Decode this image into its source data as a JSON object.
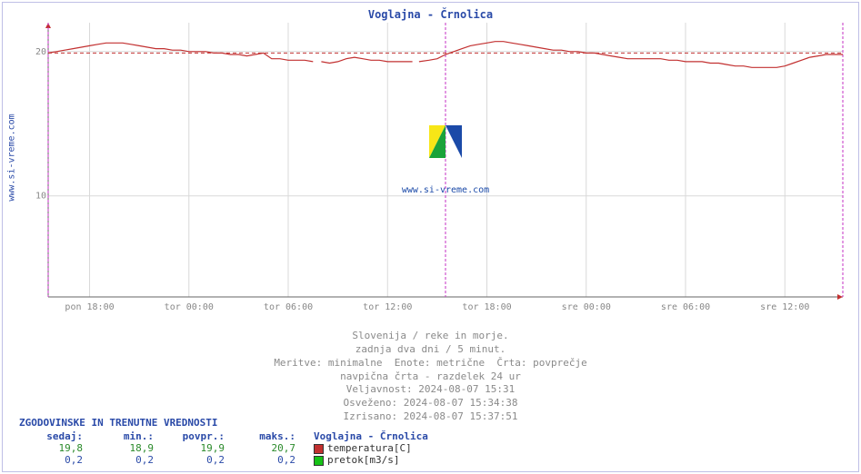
{
  "ylabel": "www.si-vreme.com",
  "title": "Voglajna - Črnolica",
  "watermark": "www.si-vreme.com",
  "meta": {
    "l1": "Slovenija / reke in morje.",
    "l2": "zadnja dva dni / 5 minut.",
    "l3": "Meritve: minimalne  Enote: metrične  Črta: povprečje",
    "l4": "navpična črta - razdelek 24 ur",
    "l5": "Veljavnost: 2024-08-07 15:31",
    "l6": "Osveženo: 2024-08-07 15:34:38",
    "l7": "Izrisano: 2024-08-07 15:37:51"
  },
  "chart": {
    "type": "line",
    "xlim": [
      0,
      48
    ],
    "ylim": [
      3,
      22
    ],
    "yticks": [
      10,
      20
    ],
    "xticks": [
      {
        "pos": 2.5,
        "label": "pon 18:00"
      },
      {
        "pos": 8.5,
        "label": "tor 00:00"
      },
      {
        "pos": 14.5,
        "label": "tor 06:00"
      },
      {
        "pos": 20.5,
        "label": "tor 12:00"
      },
      {
        "pos": 26.5,
        "label": "tor 18:00"
      },
      {
        "pos": 32.5,
        "label": "sre 00:00"
      },
      {
        "pos": 38.5,
        "label": "sre 06:00"
      },
      {
        "pos": 44.5,
        "label": "sre 12:00"
      }
    ],
    "day_dividers": [
      0.0,
      24.0,
      48.0
    ],
    "colors": {
      "axis": "#666666",
      "grid": "#d9d9d9",
      "series": "#c23030",
      "divider": "#c531c5",
      "background": "#ffffff",
      "tick_text": "#888888"
    },
    "series_avg": 19.9,
    "series": [
      [
        0.0,
        19.9
      ],
      [
        0.5,
        20.0
      ],
      [
        1.0,
        20.1
      ],
      [
        1.5,
        20.2
      ],
      [
        2.0,
        20.3
      ],
      [
        2.5,
        20.4
      ],
      [
        3.0,
        20.5
      ],
      [
        3.5,
        20.6
      ],
      [
        4.0,
        20.6
      ],
      [
        4.5,
        20.6
      ],
      [
        5.0,
        20.5
      ],
      [
        5.5,
        20.4
      ],
      [
        6.0,
        20.3
      ],
      [
        6.5,
        20.2
      ],
      [
        7.0,
        20.2
      ],
      [
        7.5,
        20.1
      ],
      [
        8.0,
        20.1
      ],
      [
        8.5,
        20.0
      ],
      [
        9.0,
        20.0
      ],
      [
        9.5,
        20.0
      ],
      [
        10.0,
        19.9
      ],
      [
        10.5,
        19.9
      ],
      [
        11.0,
        19.8
      ],
      [
        11.5,
        19.8
      ],
      [
        12.0,
        19.7
      ],
      [
        12.5,
        19.8
      ],
      [
        13.0,
        19.9
      ],
      [
        13.5,
        19.5
      ],
      [
        14.0,
        19.5
      ],
      [
        14.5,
        19.4
      ],
      [
        15.0,
        19.4
      ],
      [
        15.5,
        19.4
      ],
      [
        16.0,
        19.3
      ],
      [
        16.1,
        null
      ],
      [
        16.5,
        19.3
      ],
      [
        17.0,
        19.2
      ],
      [
        17.5,
        19.3
      ],
      [
        18.0,
        19.5
      ],
      [
        18.5,
        19.6
      ],
      [
        19.0,
        19.5
      ],
      [
        19.5,
        19.4
      ],
      [
        20.0,
        19.4
      ],
      [
        20.5,
        19.3
      ],
      [
        21.0,
        19.3
      ],
      [
        21.5,
        19.3
      ],
      [
        22.0,
        19.3
      ],
      [
        22.1,
        null
      ],
      [
        22.4,
        19.3
      ],
      [
        23.0,
        19.4
      ],
      [
        23.5,
        19.5
      ],
      [
        24.0,
        19.8
      ],
      [
        24.5,
        20.0
      ],
      [
        25.0,
        20.2
      ],
      [
        25.5,
        20.4
      ],
      [
        26.0,
        20.5
      ],
      [
        26.5,
        20.6
      ],
      [
        27.0,
        20.7
      ],
      [
        27.5,
        20.7
      ],
      [
        28.0,
        20.6
      ],
      [
        28.5,
        20.5
      ],
      [
        29.0,
        20.4
      ],
      [
        29.5,
        20.3
      ],
      [
        30.0,
        20.2
      ],
      [
        30.5,
        20.1
      ],
      [
        31.0,
        20.1
      ],
      [
        31.5,
        20.0
      ],
      [
        32.0,
        20.0
      ],
      [
        32.5,
        19.9
      ],
      [
        33.0,
        19.9
      ],
      [
        33.5,
        19.8
      ],
      [
        34.0,
        19.7
      ],
      [
        34.5,
        19.6
      ],
      [
        35.0,
        19.5
      ],
      [
        35.5,
        19.5
      ],
      [
        36.0,
        19.5
      ],
      [
        36.5,
        19.5
      ],
      [
        37.0,
        19.5
      ],
      [
        37.5,
        19.4
      ],
      [
        38.0,
        19.4
      ],
      [
        38.5,
        19.3
      ],
      [
        39.0,
        19.3
      ],
      [
        39.5,
        19.3
      ],
      [
        40.0,
        19.2
      ],
      [
        40.5,
        19.2
      ],
      [
        41.0,
        19.1
      ],
      [
        41.5,
        19.0
      ],
      [
        42.0,
        19.0
      ],
      [
        42.5,
        18.9
      ],
      [
        43.0,
        18.9
      ],
      [
        43.5,
        18.9
      ],
      [
        44.0,
        18.9
      ],
      [
        44.5,
        19.0
      ],
      [
        45.0,
        19.2
      ],
      [
        45.5,
        19.4
      ],
      [
        46.0,
        19.6
      ],
      [
        46.5,
        19.7
      ],
      [
        47.0,
        19.8
      ],
      [
        47.5,
        19.8
      ],
      [
        48.0,
        19.8
      ]
    ],
    "watermark_fontsize": 44,
    "watermark_color": "#1b4aa8"
  },
  "table": {
    "title": "ZGODOVINSKE IN TRENUTNE VREDNOSTI",
    "headers": {
      "now": "sedaj:",
      "min": "min.:",
      "avg": "povpr.:",
      "max": "maks.:"
    },
    "series_name": "Voglajna - Črnolica",
    "rows": [
      {
        "now": "19,8",
        "min": "18,9",
        "avg": "19,9",
        "max": "20,7",
        "color": "#c23030",
        "label": "temperatura[C]"
      },
      {
        "now": "0,2",
        "min": "0,2",
        "avg": "0,2",
        "max": "0,2",
        "color": "#17c217",
        "label": "pretok[m3/s]"
      }
    ]
  }
}
